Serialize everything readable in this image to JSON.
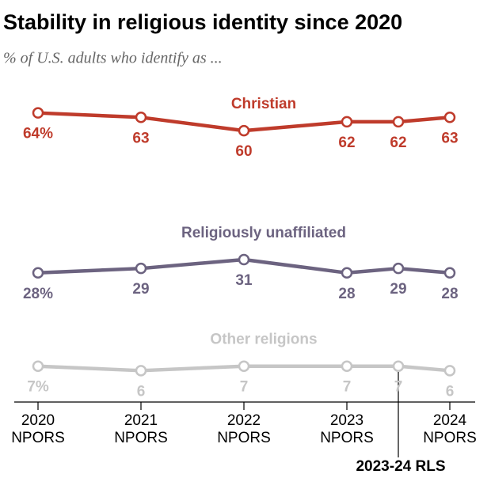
{
  "chart_data": {
    "type": "line",
    "title": "Stability in religious identity since 2020",
    "subtitle": "% of U.S. adults who identify as ...",
    "x": [
      2020,
      2021,
      2022,
      2023,
      2023.5,
      2024
    ],
    "xlim": [
      2020,
      2024
    ],
    "xticks": [
      {
        "value": 2020,
        "label": "2020\nNPORS"
      },
      {
        "value": 2021,
        "label": "2021\nNPORS"
      },
      {
        "value": 2022,
        "label": "2022\nNPORS"
      },
      {
        "value": 2023,
        "label": "2023\nNPORS"
      },
      {
        "value": 2023.5,
        "label": "2023-24 RLS"
      },
      {
        "value": 2024,
        "label": "2024\nNPORS"
      }
    ],
    "ylim": [
      0,
      70
    ],
    "series": [
      {
        "name": "Christian",
        "color": "#bf3b2b",
        "values": [
          64,
          63,
          60,
          62,
          62,
          63
        ],
        "value_labels": [
          "64%",
          "63",
          "60",
          "62",
          "62",
          "63"
        ]
      },
      {
        "name": "Religiously unaffiliated",
        "color": "#6c6380",
        "values": [
          28,
          29,
          31,
          28,
          29,
          28
        ],
        "value_labels": [
          "28%",
          "29",
          "31",
          "28",
          "29",
          "28"
        ]
      },
      {
        "name": "Other religions",
        "color": "#c6c6c6",
        "values": [
          7,
          6,
          7,
          7,
          7,
          6
        ],
        "value_labels": [
          "7%",
          "6",
          "7",
          "7",
          "7",
          "6"
        ]
      }
    ]
  }
}
